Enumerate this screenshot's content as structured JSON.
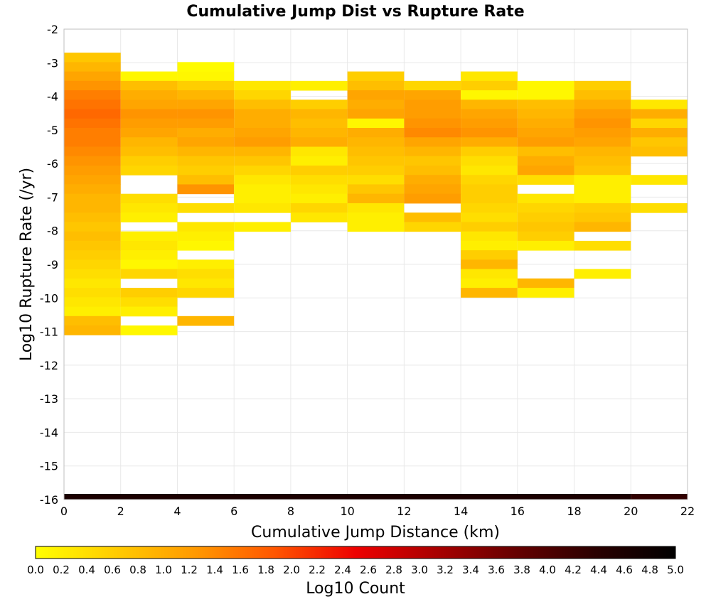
{
  "chart_data": {
    "type": "heatmap",
    "title": "Cumulative Jump Dist vs Rupture Rate",
    "xlabel": "Cumulative Jump Distance (km)",
    "ylabel": "Log10 Rupture Rate (/yr)",
    "colorbar_label": "Log10 Count",
    "xlim": [
      0,
      22
    ],
    "ylim": [
      -16,
      -2
    ],
    "x_ticks": [
      0,
      2,
      4,
      6,
      8,
      10,
      12,
      14,
      16,
      18,
      20,
      22
    ],
    "y_ticks": [
      -2,
      -3,
      -4,
      -5,
      -6,
      -7,
      -8,
      -9,
      -10,
      -11,
      -12,
      -13,
      -14,
      -15,
      -16
    ],
    "colorbar_ticks": [
      "0.0",
      "0.2",
      "0.4",
      "0.6",
      "0.8",
      "1.0",
      "1.2",
      "1.4",
      "1.6",
      "1.8",
      "2.0",
      "2.2",
      "2.4",
      "2.6",
      "2.8",
      "3.0",
      "3.2",
      "3.4",
      "3.6",
      "3.8",
      "4.0",
      "4.2",
      "4.4",
      "4.6",
      "4.8",
      "5.0"
    ],
    "color_range": [
      0,
      5
    ],
    "colormap": [
      "#ffff00",
      "#ffcc00",
      "#ff9900",
      "#ff5500",
      "#ee0000",
      "#aa0000",
      "#660000",
      "#2a0000",
      "#000000"
    ],
    "grid": true,
    "x_bin_width_km": 2,
    "y_bin_height_log10": 0.28,
    "columns": [
      {
        "x0": 0,
        "y_top": -2.7,
        "values": [
          0.7,
          0.9,
          1.1,
          1.3,
          1.5,
          1.6,
          1.7,
          1.6,
          1.5,
          1.5,
          1.4,
          1.3,
          1.2,
          1.1,
          1.0,
          0.9,
          0.9,
          0.8,
          0.7,
          0.8,
          0.7,
          0.6,
          0.5,
          0.4,
          0.3,
          0.4,
          0.3,
          0.2,
          0.8,
          0.9
        ]
      },
      {
        "x0": 2,
        "y_top": -3.26,
        "values": [
          0.1,
          0.8,
          1.0,
          1.1,
          1.3,
          1.2,
          1.1,
          0.9,
          0.8,
          0.6,
          0.5,
          null,
          null,
          0.4,
          0.3,
          0.2,
          null,
          0.2,
          0.3,
          0.2,
          0.1,
          0.5,
          null,
          0.6,
          0.4,
          0.2,
          null,
          0.1
        ]
      },
      {
        "x0": 4,
        "y_top": -2.98,
        "values": [
          0.05,
          0.1,
          0.6,
          0.9,
          1.1,
          1.3,
          1.2,
          1.0,
          1.1,
          0.9,
          0.7,
          0.6,
          0.8,
          1.3,
          null,
          0.4,
          null,
          0.3,
          0.2,
          0.1,
          null,
          0.2,
          0.4,
          0.3,
          0.5,
          null,
          null,
          0.9
        ]
      },
      {
        "x0": 6,
        "y_top": -3.54,
        "values": [
          0.3,
          0.5,
          0.8,
          1.0,
          1.0,
          1.1,
          1.2,
          0.9,
          0.7,
          0.5,
          0.3,
          0.2,
          0.2,
          0.3,
          null,
          0.2
        ]
      },
      {
        "x0": 8,
        "y_top": -3.54,
        "values": [
          0.2,
          null,
          0.6,
          0.9,
          0.8,
          0.9,
          1.0,
          0.3,
          0.2,
          0.6,
          0.4,
          0.3,
          0.2,
          0.5,
          0.3
        ]
      },
      {
        "x0": 10,
        "y_top": -3.26,
        "values": [
          0.6,
          0.8,
          1.1,
          1.0,
          1.1,
          0.1,
          1.0,
          0.9,
          0.8,
          0.7,
          0.6,
          0.4,
          0.7,
          0.9,
          0.3,
          0.2,
          0.2
        ]
      },
      {
        "x0": 12,
        "y_top": -3.54,
        "values": [
          0.5,
          1.1,
          1.2,
          1.2,
          1.3,
          1.4,
          1.1,
          0.9,
          0.7,
          0.8,
          1.0,
          1.1,
          1.2,
          null,
          0.8,
          0.5
        ]
      },
      {
        "x0": 14,
        "y_top": -3.26,
        "values": [
          0.3,
          0.6,
          0.1,
          0.9,
          1.1,
          1.2,
          1.3,
          1.0,
          0.6,
          0.4,
          0.3,
          0.5,
          0.6,
          0.6,
          0.5,
          0.4,
          0.6,
          0.3,
          0.2,
          0.6,
          0.9,
          0.3,
          0.2,
          0.9
        ]
      },
      {
        "x0": 16,
        "y_top": -3.54,
        "values": [
          0.1,
          0.1,
          0.8,
          0.9,
          1.0,
          1.1,
          1.2,
          0.8,
          1.0,
          1.1,
          0.4,
          null,
          0.3,
          0.5,
          0.6,
          0.7,
          0.6,
          0.2,
          null,
          null,
          null,
          0.9,
          0.2
        ]
      },
      {
        "x0": 18,
        "y_top": -3.54,
        "values": [
          0.6,
          0.8,
          1.0,
          1.2,
          1.3,
          1.2,
          1.1,
          0.9,
          0.8,
          0.7,
          0.2,
          0.2,
          0.2,
          0.6,
          0.7,
          0.9,
          null,
          0.4,
          null,
          null,
          0.2
        ]
      },
      {
        "x0": 20,
        "y_top": -4.1,
        "values": [
          0.3,
          1.0,
          0.5,
          1.0,
          0.7,
          0.8,
          null,
          null,
          0.3,
          null,
          null,
          0.4
        ]
      }
    ],
    "floor_band": {
      "y": -16,
      "x_ranges": [
        [
          0,
          20
        ],
        [
          20,
          22
        ]
      ],
      "values": [
        4.6,
        4.3
      ]
    }
  }
}
